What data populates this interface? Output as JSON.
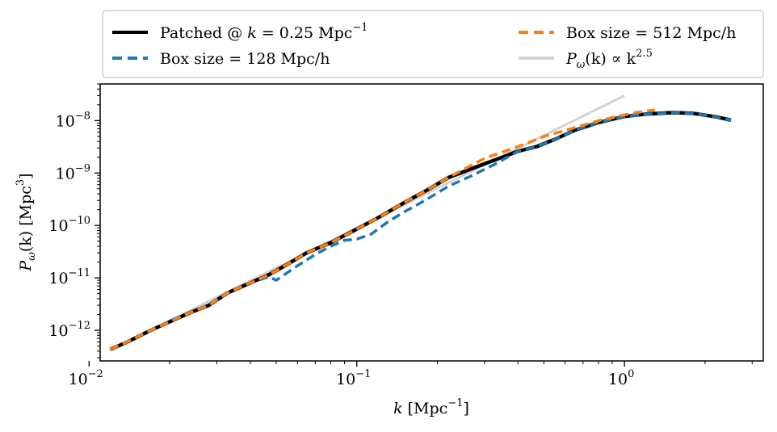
{
  "chart_data": {
    "type": "line",
    "title": "",
    "xscale": "log",
    "yscale": "log",
    "xlabel": {
      "main": "k [Mpc",
      "sup": "−1",
      "tail": "]"
    },
    "ylabel": {
      "main": "P",
      "sub": "ω",
      "mid": "(k) [Mpc",
      "sup": "3",
      "tail": "]"
    },
    "xlim": [
      0.011,
      3.3
    ],
    "ylim": [
      2.6e-13,
      5e-08
    ],
    "xticks": [
      {
        "base": "10",
        "exp": "−2",
        "value": 0.01
      },
      {
        "base": "10",
        "exp": "−1",
        "value": 0.1
      },
      {
        "base": "10",
        "exp": "0",
        "value": 1
      }
    ],
    "yticks": [
      {
        "base": "10",
        "exp": "−12",
        "value": 1e-12
      },
      {
        "base": "10",
        "exp": "−11",
        "value": 1e-11
      },
      {
        "base": "10",
        "exp": "−10",
        "value": 1e-10
      },
      {
        "base": "10",
        "exp": "−9",
        "value": 1e-09
      },
      {
        "base": "10",
        "exp": "−8",
        "value": 1e-08
      }
    ],
    "legend_position": "top (above axes, 2 columns)",
    "series": [
      {
        "name": "Box size = 128 Mpc/h",
        "legend": {
          "pre": "Box size = 128 Mpc/h"
        },
        "color": "#1f77b4",
        "style": "dashed",
        "x": [
          0.012,
          0.014,
          0.017,
          0.02,
          0.024,
          0.028,
          0.033,
          0.04,
          0.047,
          0.05,
          0.06,
          0.07,
          0.08,
          0.09,
          0.1,
          0.113,
          0.13,
          0.15,
          0.18,
          0.22,
          0.27,
          0.33,
          0.4,
          0.47,
          0.55,
          0.65,
          0.8,
          1.0,
          1.2,
          1.5,
          1.8,
          2.2,
          2.5
        ],
        "y": [
          4.3e-13,
          6.2e-13,
          1e-12,
          1.5e-12,
          2.2e-12,
          3.1e-12,
          5.3e-12,
          8e-12,
          1.05e-11,
          9e-12,
          1.7e-11,
          2.8e-11,
          4e-11,
          5.2e-11,
          5.5e-11,
          6.8e-11,
          1.15e-10,
          1.8e-10,
          3e-10,
          5.6e-10,
          9e-10,
          1.5e-09,
          2.6e-09,
          3.2e-09,
          4.4e-09,
          6.5e-09,
          9.2e-09,
          1.2e-08,
          1.33e-08,
          1.42e-08,
          1.38e-08,
          1.18e-08,
          1.02e-08
        ]
      },
      {
        "name": "Box size = 512 Mpc/h",
        "legend": {
          "pre": "Box size = 512 Mpc/h"
        },
        "color": "#ff7f0e",
        "style": "dashed",
        "x": [
          0.012,
          0.014,
          0.017,
          0.02,
          0.024,
          0.028,
          0.033,
          0.04,
          0.047,
          0.055,
          0.065,
          0.08,
          0.1,
          0.12,
          0.15,
          0.18,
          0.22,
          0.26,
          0.3,
          0.35,
          0.42,
          0.5,
          0.6,
          0.7,
          0.8,
          0.95,
          1.1,
          1.3
        ],
        "y": [
          4.3e-13,
          6.1e-13,
          1e-12,
          1.45e-12,
          2.2e-12,
          3e-12,
          5.2e-12,
          8e-12,
          1.15e-11,
          1.8e-11,
          3e-11,
          4.7e-11,
          8.5e-11,
          1.4e-10,
          2.7e-10,
          4.5e-10,
          8.2e-10,
          1.3e-09,
          1.9e-09,
          2.5e-09,
          3.5e-09,
          5e-09,
          6.5e-09,
          8.2e-09,
          1e-08,
          1.22e-08,
          1.42e-08,
          1.6e-08
        ]
      },
      {
        "name": "Patched @ k = 0.25 Mpc^-1",
        "legend": {
          "pre": "Patched @ ",
          "var": "k",
          "post": " = 0.25 Mpc",
          "sup": "−1"
        },
        "color": "#000000",
        "style": "solid",
        "x": [
          0.012,
          0.014,
          0.017,
          0.02,
          0.024,
          0.028,
          0.033,
          0.04,
          0.047,
          0.055,
          0.065,
          0.08,
          0.1,
          0.12,
          0.15,
          0.18,
          0.22,
          0.25,
          0.3,
          0.35,
          0.4,
          0.47,
          0.55,
          0.65,
          0.8,
          1.0,
          1.2,
          1.5,
          1.8,
          2.2,
          2.5
        ],
        "y": [
          4.3e-13,
          6.1e-13,
          1e-12,
          1.45e-12,
          2.2e-12,
          3e-12,
          5.2e-12,
          8e-12,
          1.15e-11,
          1.8e-11,
          3e-11,
          4.7e-11,
          8.5e-11,
          1.4e-10,
          2.7e-10,
          4.5e-10,
          8.2e-10,
          1.05e-09,
          1.5e-09,
          2e-09,
          2.6e-09,
          3.2e-09,
          4.4e-09,
          6.5e-09,
          9.2e-09,
          1.2e-08,
          1.33e-08,
          1.42e-08,
          1.38e-08,
          1.18e-08,
          1.02e-08
        ]
      },
      {
        "name": "P_omega(k) ∝ k^2.5",
        "legend": {
          "pre": "P",
          "sub": "ω",
          "mid": "(k) ∝ k",
          "sup": "2.5"
        },
        "color": "#d3d3d3",
        "style": "solid",
        "x": [
          0.012,
          1.0
        ],
        "y": [
          4.2e-13,
          3e-08
        ]
      }
    ]
  }
}
